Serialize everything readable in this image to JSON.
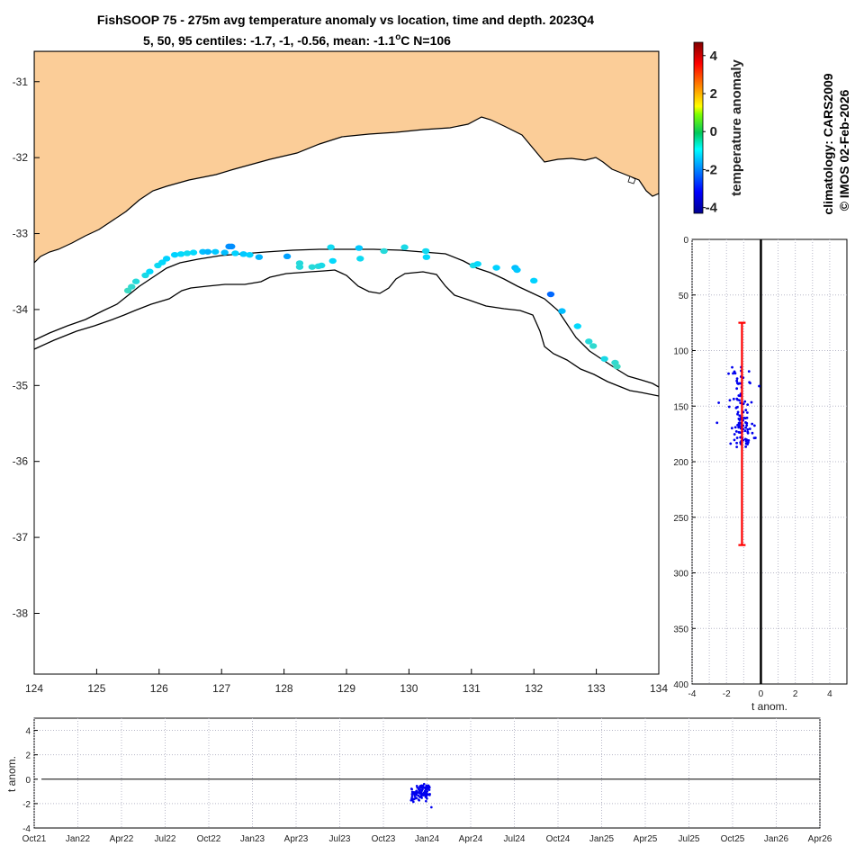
{
  "title": {
    "line1": "FishSOOP 75 - 275m avg temperature anomaly vs location, time and depth. 2023Q4",
    "line2_prefix": "5, 50, 95 centiles: -1.7, -1, -0.56, mean: -1.1",
    "line2_degree": "o",
    "line2_suffix": "C N=106"
  },
  "side_text": {
    "climatology": "climatology: CARS2009",
    "copyright": "© IMOS 02-Feb-2026"
  },
  "colorbar": {
    "label": "temperature anomaly",
    "ticks": [
      "4",
      "2",
      "0",
      "-2",
      "-4"
    ],
    "range": [
      -4.3,
      4.7
    ]
  },
  "chart_data": [
    {
      "type": "scatter",
      "name": "map",
      "xlabel": "",
      "ylabel": "",
      "xlim": [
        124,
        134
      ],
      "ylim": [
        -38.8,
        -30.6
      ],
      "xticks": [
        "124",
        "125",
        "126",
        "127",
        "128",
        "129",
        "130",
        "131",
        "132",
        "133",
        "134"
      ],
      "yticks": [
        "-31",
        "-32",
        "-33",
        "-34",
        "-35",
        "-36",
        "-37",
        "-38"
      ],
      "colors": {
        "land": "#fbcd98",
        "coast": "#000000"
      },
      "points": [
        {
          "lon": 125.5,
          "lat": -33.75,
          "anom": -0.4
        },
        {
          "lon": 125.56,
          "lat": -33.7,
          "anom": -0.5
        },
        {
          "lon": 125.63,
          "lat": -33.63,
          "anom": -0.6
        },
        {
          "lon": 125.78,
          "lat": -33.55,
          "anom": -0.7
        },
        {
          "lon": 125.85,
          "lat": -33.5,
          "anom": -0.9
        },
        {
          "lon": 125.98,
          "lat": -33.42,
          "anom": -0.8
        },
        {
          "lon": 126.05,
          "lat": -33.38,
          "anom": -0.9
        },
        {
          "lon": 126.12,
          "lat": -33.33,
          "anom": -1.0
        },
        {
          "lon": 126.25,
          "lat": -33.28,
          "anom": -1.0
        },
        {
          "lon": 126.35,
          "lat": -33.27,
          "anom": -0.9
        },
        {
          "lon": 126.45,
          "lat": -33.26,
          "anom": -0.8
        },
        {
          "lon": 126.55,
          "lat": -33.25,
          "anom": -0.9
        },
        {
          "lon": 126.7,
          "lat": -33.24,
          "anom": -1.2
        },
        {
          "lon": 126.78,
          "lat": -33.24,
          "anom": -1.3
        },
        {
          "lon": 126.9,
          "lat": -33.24,
          "anom": -1.1
        },
        {
          "lon": 127.05,
          "lat": -33.25,
          "anom": -1.2
        },
        {
          "lon": 127.16,
          "lat": -33.17,
          "anom": -1.7
        },
        {
          "lon": 127.12,
          "lat": -33.17,
          "anom": -1.7
        },
        {
          "lon": 127.22,
          "lat": -33.26,
          "anom": -1.0
        },
        {
          "lon": 127.35,
          "lat": -33.27,
          "anom": -1.1
        },
        {
          "lon": 127.45,
          "lat": -33.28,
          "anom": -1.0
        },
        {
          "lon": 127.6,
          "lat": -33.31,
          "anom": -1.3
        },
        {
          "lon": 128.05,
          "lat": -33.3,
          "anom": -1.5
        },
        {
          "lon": 128.25,
          "lat": -33.44,
          "anom": -0.6
        },
        {
          "lon": 128.25,
          "lat": -33.39,
          "anom": -0.6
        },
        {
          "lon": 128.45,
          "lat": -33.44,
          "anom": -0.6
        },
        {
          "lon": 128.55,
          "lat": -33.43,
          "anom": -0.6
        },
        {
          "lon": 128.6,
          "lat": -33.42,
          "anom": -0.7
        },
        {
          "lon": 128.75,
          "lat": -33.18,
          "anom": -0.8
        },
        {
          "lon": 128.78,
          "lat": -33.36,
          "anom": -0.9
        },
        {
          "lon": 129.2,
          "lat": -33.19,
          "anom": -1.1
        },
        {
          "lon": 129.22,
          "lat": -33.33,
          "anom": -0.8
        },
        {
          "lon": 129.6,
          "lat": -33.23,
          "anom": -0.6
        },
        {
          "lon": 129.93,
          "lat": -33.18,
          "anom": -0.7
        },
        {
          "lon": 130.27,
          "lat": -33.23,
          "anom": -0.8
        },
        {
          "lon": 130.28,
          "lat": -33.31,
          "anom": -0.9
        },
        {
          "lon": 131.03,
          "lat": -33.42,
          "anom": -0.7
        },
        {
          "lon": 131.1,
          "lat": -33.4,
          "anom": -0.9
        },
        {
          "lon": 131.4,
          "lat": -33.45,
          "anom": -1.0
        },
        {
          "lon": 131.7,
          "lat": -33.45,
          "anom": -1.2
        },
        {
          "lon": 131.73,
          "lat": -33.48,
          "anom": -1.1
        },
        {
          "lon": 132.0,
          "lat": -33.62,
          "anom": -1.0
        },
        {
          "lon": 132.27,
          "lat": -33.8,
          "anom": -2.1
        },
        {
          "lon": 132.45,
          "lat": -34.02,
          "anom": -1.2
        },
        {
          "lon": 132.7,
          "lat": -34.22,
          "anom": -0.9
        },
        {
          "lon": 132.88,
          "lat": -34.42,
          "anom": -0.6
        },
        {
          "lon": 132.95,
          "lat": -34.48,
          "anom": -0.5
        },
        {
          "lon": 133.13,
          "lat": -34.65,
          "anom": -0.7
        },
        {
          "lon": 133.3,
          "lat": -34.7,
          "anom": -0.5
        },
        {
          "lon": 133.33,
          "lat": -34.75,
          "anom": -0.4
        }
      ]
    },
    {
      "type": "scatter",
      "name": "depth-profile",
      "xlabel": "t anom.",
      "ylabel": "",
      "xlim": [
        -4,
        5
      ],
      "ylim": [
        0,
        400
      ],
      "xticks": [
        "-4",
        "-2",
        "0",
        "2",
        "4"
      ],
      "yticks": [
        "0",
        "50",
        "100",
        "150",
        "200",
        "250",
        "300",
        "350",
        "400"
      ],
      "errorbar": {
        "x": -1.1,
        "y_top": 75,
        "y_bottom": 275,
        "color": "#ff0000"
      },
      "zero_line": 0
    },
    {
      "type": "scatter",
      "name": "time-series",
      "xlabel": "",
      "ylabel": "t anom.",
      "ylim": [
        -4,
        5
      ],
      "yticks": [
        "4",
        "2",
        "0",
        "-2",
        "-4"
      ],
      "xticks": [
        "Oct21",
        "Jan22",
        "Apr22",
        "Jul22",
        "Oct22",
        "Jan23",
        "Apr23",
        "Jul23",
        "Oct23",
        "Jan24",
        "Apr24",
        "Jul24",
        "Oct24",
        "Jan25",
        "Apr25",
        "Jul25",
        "Oct25",
        "Jan26",
        "Apr26"
      ],
      "zero_line": 0,
      "cluster": {
        "month_start": 25.9,
        "month_end": 27.2,
        "anom_center": -1.1,
        "anom_min": -2.3,
        "anom_max": -0.4
      }
    }
  ]
}
